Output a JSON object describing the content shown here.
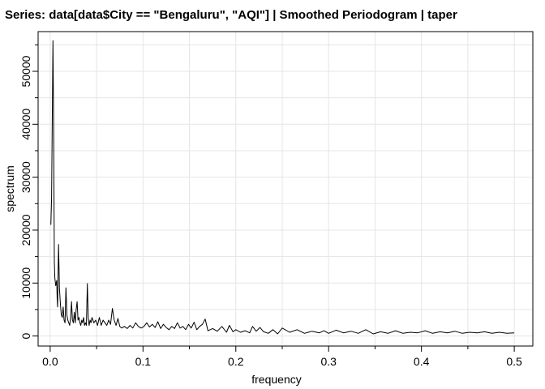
{
  "chart_data": {
    "type": "line",
    "title": "Series: data[data$City == \"Bengaluru\", \"AQI\"]  |  Smoothed Periodogram  |  taper",
    "xlabel": "frequency",
    "ylabel": "spectrum",
    "xlim": [
      -0.013,
      0.52
    ],
    "ylim": [
      -1900,
      57500
    ],
    "xticks": [
      0.0,
      0.1,
      0.2,
      0.3,
      0.4,
      0.5
    ],
    "xtick_labels": [
      "0.0",
      "0.1",
      "0.2",
      "0.3",
      "0.4",
      "0.5"
    ],
    "yticks": [
      0,
      10000,
      20000,
      30000,
      40000,
      50000
    ],
    "ytick_labels": [
      "0",
      "10000",
      "20000",
      "30000",
      "40000",
      "50000"
    ],
    "grid": true,
    "line_color": "#000000",
    "grid_color": "#e5e5e5",
    "series": [
      {
        "x": [
          0.0007,
          0.0015,
          0.0022,
          0.003,
          0.0037,
          0.0045,
          0.005,
          0.006,
          0.007,
          0.0075,
          0.008,
          0.009,
          0.01,
          0.011,
          0.012,
          0.013,
          0.014,
          0.015,
          0.016,
          0.017,
          0.018,
          0.019,
          0.02,
          0.021,
          0.022,
          0.023,
          0.024,
          0.025,
          0.026,
          0.027,
          0.028,
          0.029,
          0.03,
          0.031,
          0.032,
          0.033,
          0.034,
          0.035,
          0.036,
          0.037,
          0.038,
          0.039,
          0.04,
          0.041,
          0.042,
          0.043,
          0.044,
          0.045,
          0.047,
          0.049,
          0.051,
          0.053,
          0.055,
          0.057,
          0.059,
          0.061,
          0.063,
          0.065,
          0.067,
          0.069,
          0.071,
          0.073,
          0.075,
          0.077,
          0.08,
          0.083,
          0.086,
          0.089,
          0.092,
          0.095,
          0.098,
          0.101,
          0.104,
          0.107,
          0.11,
          0.113,
          0.116,
          0.119,
          0.122,
          0.125,
          0.128,
          0.131,
          0.134,
          0.137,
          0.14,
          0.143,
          0.146,
          0.149,
          0.152,
          0.155,
          0.158,
          0.161,
          0.164,
          0.167,
          0.17,
          0.175,
          0.18,
          0.185,
          0.19,
          0.193,
          0.197,
          0.2,
          0.205,
          0.21,
          0.215,
          0.218,
          0.222,
          0.226,
          0.23,
          0.235,
          0.24,
          0.245,
          0.25,
          0.258,
          0.266,
          0.274,
          0.282,
          0.29,
          0.295,
          0.3,
          0.308,
          0.316,
          0.324,
          0.332,
          0.34,
          0.348,
          0.356,
          0.364,
          0.372,
          0.38,
          0.388,
          0.396,
          0.404,
          0.412,
          0.42,
          0.428,
          0.436,
          0.444,
          0.452,
          0.46,
          0.468,
          0.476,
          0.484,
          0.492,
          0.5
        ],
        "y": [
          21000,
          26000,
          40000,
          55800,
          40000,
          14000,
          11000,
          9500,
          10500,
          7000,
          5500,
          17300,
          9000,
          6000,
          4000,
          3500,
          5500,
          3000,
          2500,
          9100,
          4000,
          3000,
          2500,
          2000,
          3500,
          6500,
          3000,
          2500,
          4500,
          2500,
          5000,
          6500,
          3000,
          3500,
          2500,
          2000,
          3000,
          2500,
          3500,
          2000,
          2500,
          2000,
          9900,
          3500,
          2000,
          3000,
          2500,
          3500,
          2500,
          3000,
          2000,
          3500,
          2000,
          3000,
          2500,
          2000,
          3000,
          2200,
          5200,
          3000,
          2000,
          3300,
          1800,
          1500,
          1800,
          1400,
          2000,
          1500,
          2500,
          1800,
          1500,
          1800,
          2500,
          1700,
          2200,
          1600,
          2700,
          1400,
          2200,
          1600,
          1200,
          1800,
          1400,
          2500,
          1500,
          1800,
          1200,
          2200,
          1500,
          2600,
          1200,
          1800,
          2200,
          3200,
          1000,
          1400,
          900,
          1800,
          700,
          2000,
          800,
          1200,
          700,
          1000,
          600,
          1800,
          900,
          1600,
          800,
          500,
          1200,
          400,
          1500,
          700,
          1200,
          500,
          900,
          600,
          1000,
          500,
          1100,
          600,
          900,
          500,
          1200,
          400,
          800,
          500,
          1000,
          500,
          700,
          600,
          1000,
          500,
          800,
          600,
          900,
          500,
          700,
          600,
          800,
          500,
          700,
          500,
          600
        ]
      }
    ]
  }
}
